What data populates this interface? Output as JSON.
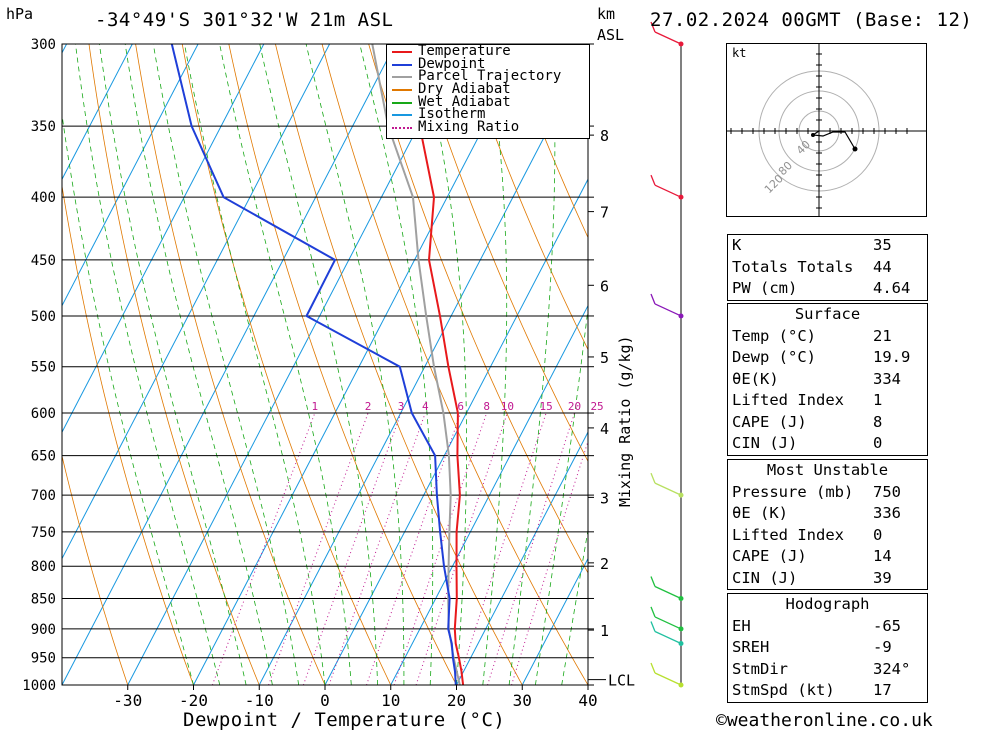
{
  "header": {
    "location": "-34°49'S  301°32'W  21m  ASL",
    "datetime": "27.02.2024  00GMT  (Base: 12)",
    "unit_pressure": "hPa",
    "unit_km": "km",
    "unit_asl": "ASL"
  },
  "footer": {
    "xlabel": "Dewpoint / Temperature (°C)",
    "credit": "©weatheronline.co.uk",
    "mixing_label": "Mixing Ratio (g/kg)",
    "lcl_label": "LCL"
  },
  "legend": [
    {
      "label": "Temperature",
      "color": "#e8191b",
      "style": "solid"
    },
    {
      "label": "Dewpoint",
      "color": "#1f3fd8",
      "style": "solid"
    },
    {
      "label": "Parcel Trajectory",
      "color": "#a0a0a0",
      "style": "solid"
    },
    {
      "label": "Dry Adiabat",
      "color": "#e07800",
      "style": "solid"
    },
    {
      "label": "Wet Adiabat",
      "color": "#18a818",
      "style": "solid"
    },
    {
      "label": "Isotherm",
      "color": "#1898e0",
      "style": "solid"
    },
    {
      "label": "Mixing Ratio",
      "color": "#c01890",
      "style": "dotted"
    }
  ],
  "indices": {
    "k_label": "K",
    "k_value": "35",
    "tt_label": "Totals Totals",
    "tt_value": "44",
    "pw_label": "PW (cm)",
    "pw_value": "4.64"
  },
  "surface": {
    "title": "Surface",
    "temp_label": "Temp (°C)",
    "temp_value": "21",
    "dewp_label": "Dewp (°C)",
    "dewp_value": "19.9",
    "theta_label": "θE(K)",
    "theta_value": "334",
    "li_label": "Lifted Index",
    "li_value": "1",
    "cape_label": "CAPE (J)",
    "cape_value": "8",
    "cin_label": "CIN (J)",
    "cin_value": "0"
  },
  "most_unstable": {
    "title": "Most Unstable",
    "pres_label": "Pressure (mb)",
    "pres_value": "750",
    "theta_label": "θE (K)",
    "theta_value": "336",
    "li_label": "Lifted Index",
    "li_value": "0",
    "cape_label": "CAPE (J)",
    "cape_value": "14",
    "cin_label": "CIN (J)",
    "cin_value": "39"
  },
  "hodograph": {
    "title": "Hodograph",
    "unit": "kt",
    "eh_label": "EH",
    "eh_value": "-65",
    "sreh_label": "SREH",
    "sreh_value": "-9",
    "stmdir_label": "StmDir",
    "stmdir_value": "324°",
    "stmspd_label": "StmSpd (kt)",
    "stmspd_value": "17",
    "ring_labels": [
      "40",
      "80",
      "120"
    ]
  },
  "chart_data": {
    "type": "line",
    "title": "",
    "xlabel": "Dewpoint / Temperature (°C)",
    "ylabel": "hPa",
    "pressure_levels": [
      300,
      350,
      400,
      450,
      500,
      550,
      600,
      650,
      700,
      750,
      800,
      850,
      900,
      950,
      1000
    ],
    "x_ticks": [
      -30,
      -20,
      -10,
      0,
      10,
      20,
      30,
      40
    ],
    "xlim": [
      -40,
      40
    ],
    "ylim": [
      1000,
      300
    ],
    "yscale": "log",
    "skew": true,
    "altitude_km_ticks": [
      {
        "km": "1",
        "p": 902
      },
      {
        "km": "2",
        "p": 795
      },
      {
        "km": "3",
        "p": 703
      },
      {
        "km": "4",
        "p": 617
      },
      {
        "km": "5",
        "p": 540
      },
      {
        "km": "6",
        "p": 472
      },
      {
        "km": "7",
        "p": 411
      },
      {
        "km": "8",
        "p": 356
      }
    ],
    "mixing_ratio_labels": [
      "1",
      "2",
      "3",
      "4",
      "6",
      "8",
      "10",
      "15",
      "20",
      "25"
    ],
    "series": [
      {
        "name": "Temperature",
        "color": "#e8191b",
        "points": [
          [
            1000,
            21
          ],
          [
            975,
            19.7
          ],
          [
            950,
            18.2
          ],
          [
            925,
            16.6
          ],
          [
            900,
            15.3
          ],
          [
            850,
            13.2
          ],
          [
            800,
            10.6
          ],
          [
            750,
            7.9
          ],
          [
            700,
            5.5
          ],
          [
            650,
            2.0
          ],
          [
            600,
            -1.3
          ],
          [
            550,
            -6.4
          ],
          [
            500,
            -11.7
          ],
          [
            450,
            -17.8
          ],
          [
            400,
            -22.0
          ],
          [
            350,
            -29.8
          ],
          [
            300,
            -39.0
          ]
        ]
      },
      {
        "name": "Dewpoint",
        "color": "#1f3fd8",
        "points": [
          [
            1000,
            19.9
          ],
          [
            975,
            18.7
          ],
          [
            950,
            17.3
          ],
          [
            925,
            16.0
          ],
          [
            900,
            14.3
          ],
          [
            850,
            12.1
          ],
          [
            800,
            8.7
          ],
          [
            750,
            5.4
          ],
          [
            700,
            2.0
          ],
          [
            650,
            -1.4
          ],
          [
            600,
            -8.3
          ],
          [
            550,
            -13.8
          ],
          [
            500,
            -32.0
          ],
          [
            450,
            -32.1
          ],
          [
            400,
            -54.0
          ],
          [
            350,
            -64.5
          ],
          [
            300,
            -74.0
          ]
        ]
      },
      {
        "name": "Parcel Trajectory",
        "color": "#a0a0a0",
        "points": [
          [
            1000,
            20.5
          ],
          [
            950,
            17.4
          ],
          [
            900,
            14.4
          ],
          [
            850,
            11.9
          ],
          [
            800,
            9.4
          ],
          [
            750,
            6.8
          ],
          [
            700,
            4.1
          ],
          [
            650,
            0.7
          ],
          [
            600,
            -3.5
          ],
          [
            550,
            -8.6
          ],
          [
            500,
            -13.8
          ],
          [
            450,
            -19.4
          ],
          [
            400,
            -25.2
          ],
          [
            350,
            -34.6
          ],
          [
            300,
            -43.5
          ]
        ]
      }
    ],
    "wind_barbs_pressure": [
      300,
      400,
      500,
      700,
      850,
      900,
      925,
      1000
    ]
  }
}
